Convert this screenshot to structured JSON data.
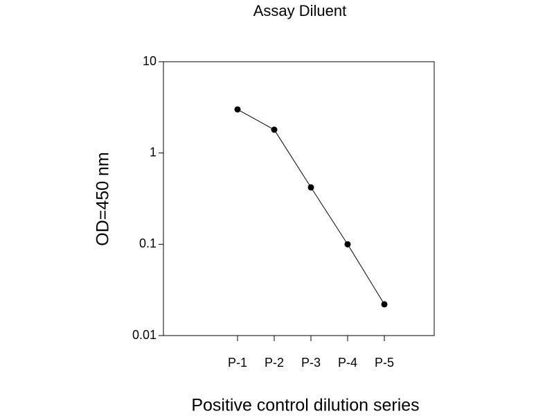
{
  "chart_data": {
    "type": "line",
    "title": "Assay Diluent",
    "x_label": "Positive control dilution series",
    "y_label": "OD=450 nm",
    "categories": [
      "P-1",
      "P-2",
      "P-3",
      "P-4",
      "P-5"
    ],
    "series": [
      {
        "name": "Assay Diluent",
        "color": "#000000",
        "values": [
          3.0,
          1.8,
          0.42,
          0.1,
          0.022
        ]
      }
    ],
    "ylim": [
      0.01,
      10
    ],
    "yticks": [
      0.01,
      0.1,
      1,
      10
    ],
    "log_scale": true,
    "grid": false
  }
}
